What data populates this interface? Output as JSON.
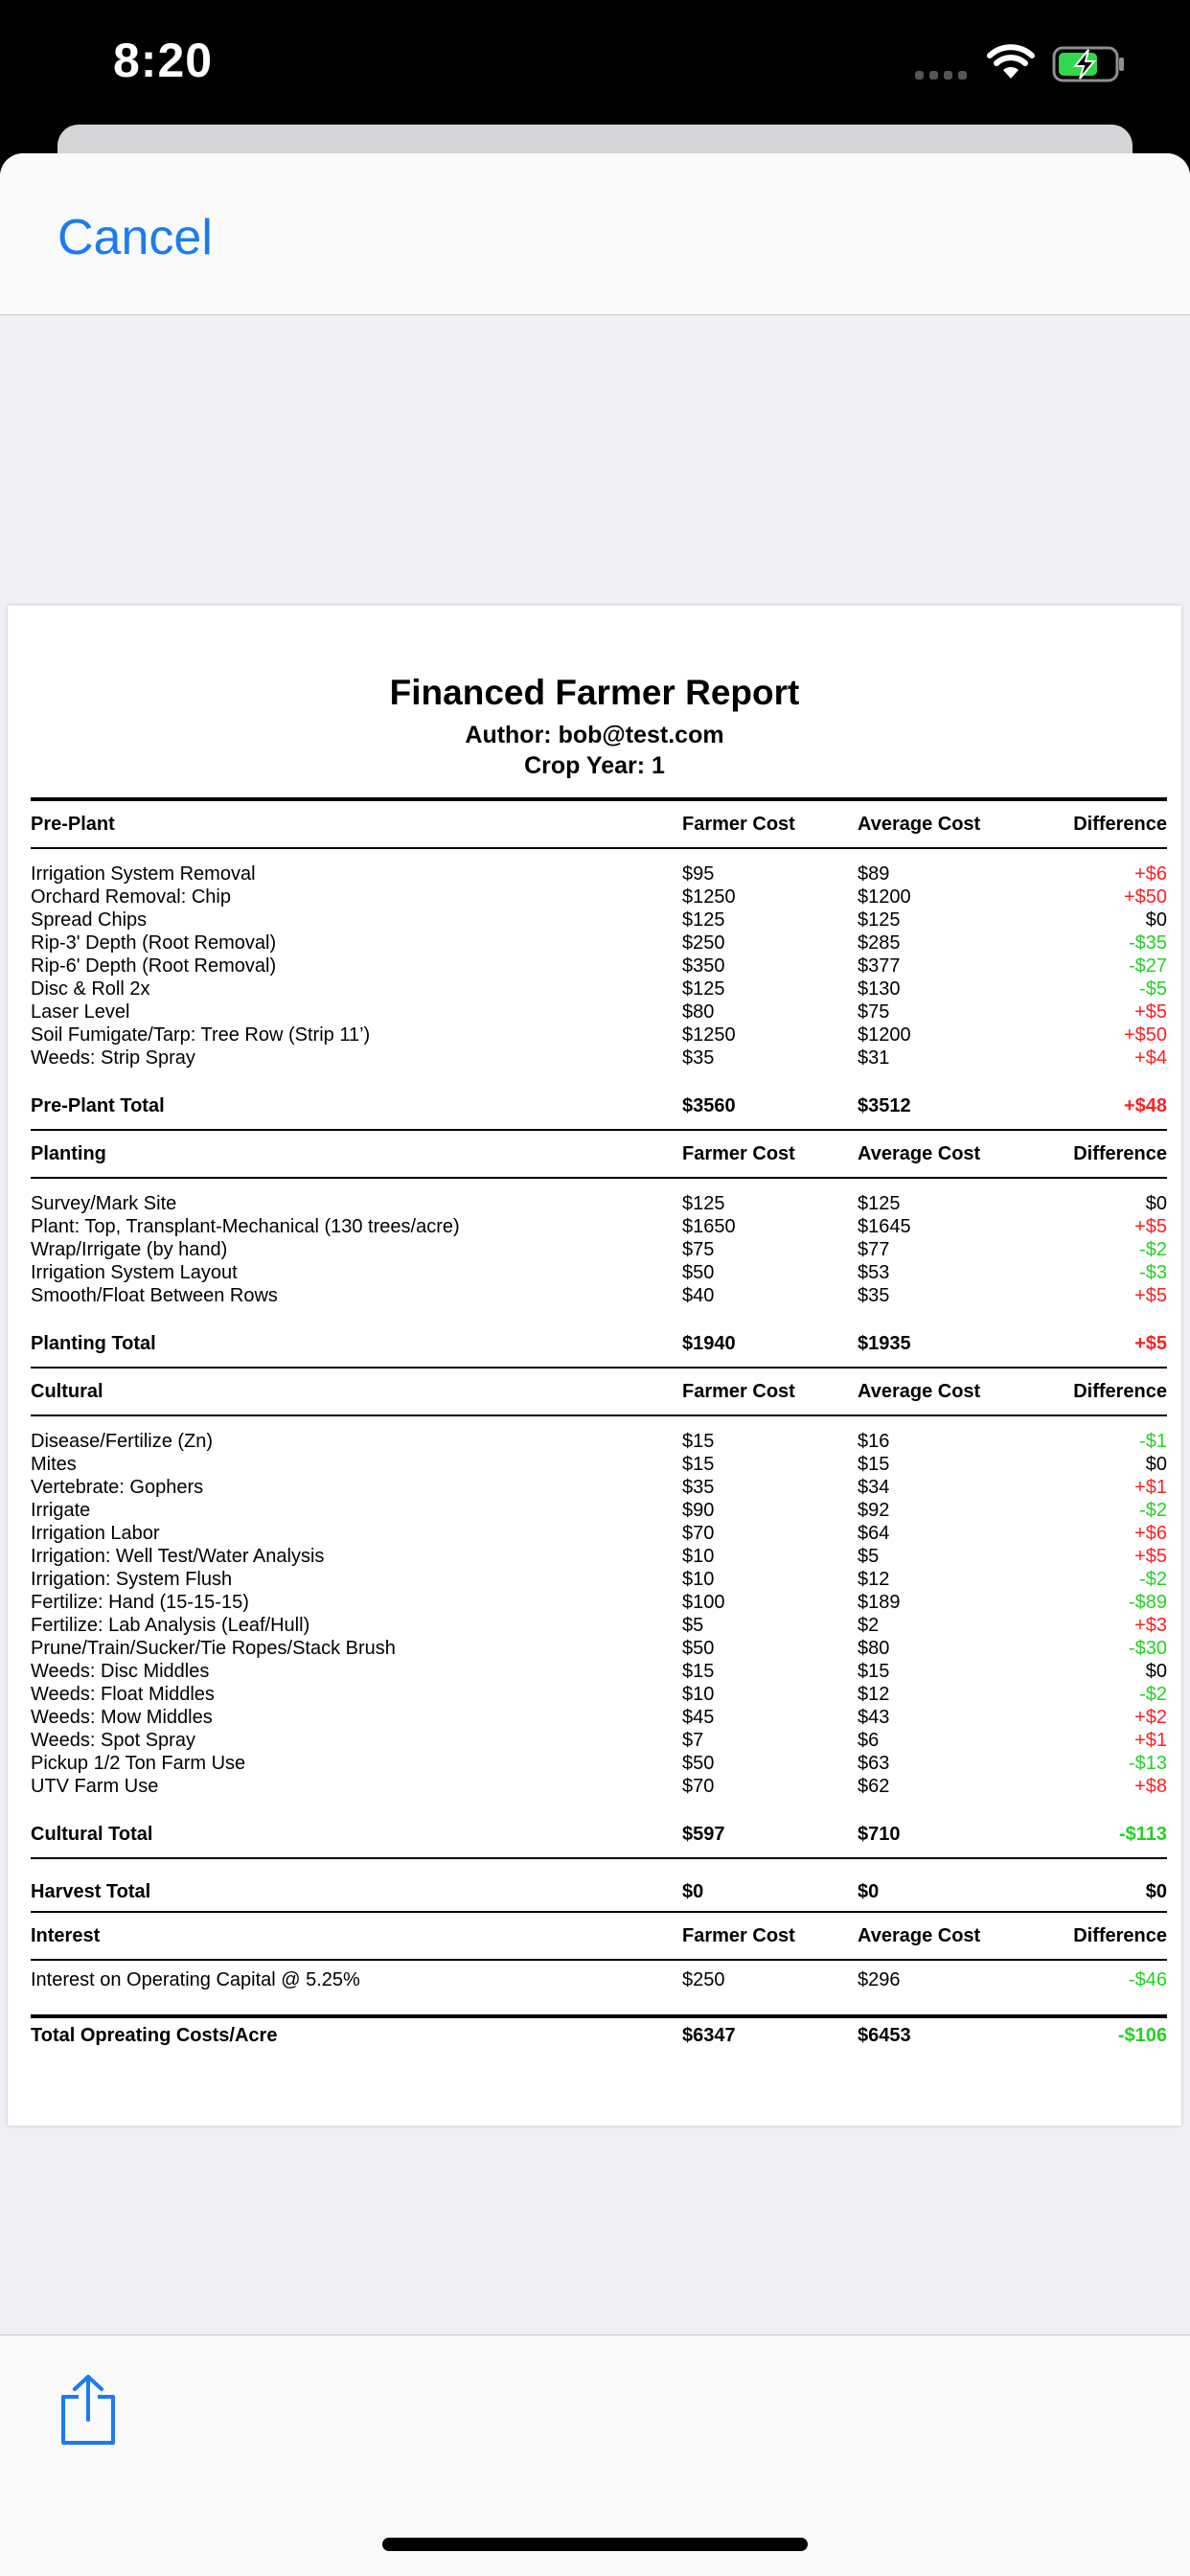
{
  "status_bar": {
    "time": "8:20"
  },
  "nav": {
    "cancel_label": "Cancel"
  },
  "report": {
    "title": "Financed Farmer Report",
    "author": "Author: bob@test.com",
    "crop_year": "Crop Year: 1",
    "sections": [
      {
        "name": "Pre-Plant",
        "headers": [
          "Farmer Cost",
          "Average Cost",
          "Difference"
        ],
        "items": [
          {
            "name": "Irrigation System Removal",
            "farmer": "$95",
            "avg": "$89",
            "diff": "+$6"
          },
          {
            "name": "Orchard Removal: Chip",
            "farmer": "$1250",
            "avg": "$1200",
            "diff": "+$50"
          },
          {
            "name": "Spread Chips",
            "farmer": "$125",
            "avg": "$125",
            "diff": "$0"
          },
          {
            "name": "Rip-3' Depth (Root Removal)",
            "farmer": "$250",
            "avg": "$285",
            "diff": "-$35"
          },
          {
            "name": "Rip-6' Depth (Root Removal)",
            "farmer": "$350",
            "avg": "$377",
            "diff": "-$27"
          },
          {
            "name": "Disc & Roll 2x",
            "farmer": "$125",
            "avg": "$130",
            "diff": "-$5"
          },
          {
            "name": "Laser Level",
            "farmer": "$80",
            "avg": "$75",
            "diff": "+$5"
          },
          {
            "name": "Soil Fumigate/Tarp: Tree Row (Strip 11’)",
            "farmer": "$1250",
            "avg": "$1200",
            "diff": "+$50"
          },
          {
            "name": "Weeds: Strip Spray",
            "farmer": "$35",
            "avg": "$31",
            "diff": "+$4"
          }
        ],
        "total": {
          "name": "Pre-Plant Total",
          "farmer": "$3560",
          "avg": "$3512",
          "diff": "+$48"
        }
      },
      {
        "name": "Planting",
        "headers": [
          "Farmer Cost",
          "Average Cost",
          "Difference"
        ],
        "items": [
          {
            "name": "Survey/Mark Site",
            "farmer": "$125",
            "avg": "$125",
            "diff": "$0"
          },
          {
            "name": "Plant: Top, Transplant-Mechanical (130 trees/acre)",
            "farmer": "$1650",
            "avg": "$1645",
            "diff": "+$5"
          },
          {
            "name": "Wrap/Irrigate (by hand)",
            "farmer": "$75",
            "avg": "$77",
            "diff": "-$2"
          },
          {
            "name": "Irrigation System Layout",
            "farmer": "$50",
            "avg": "$53",
            "diff": "-$3"
          },
          {
            "name": "Smooth/Float Between Rows",
            "farmer": "$40",
            "avg": "$35",
            "diff": "+$5"
          }
        ],
        "total": {
          "name": "Planting Total",
          "farmer": "$1940",
          "avg": "$1935",
          "diff": "+$5"
        }
      },
      {
        "name": "Cultural",
        "headers": [
          "Farmer Cost",
          "Average Cost",
          "Difference"
        ],
        "items": [
          {
            "name": "Disease/Fertilize (Zn)",
            "farmer": "$15",
            "avg": "$16",
            "diff": "-$1"
          },
          {
            "name": "Mites",
            "farmer": "$15",
            "avg": "$15",
            "diff": "$0"
          },
          {
            "name": "Vertebrate: Gophers",
            "farmer": "$35",
            "avg": "$34",
            "diff": "+$1"
          },
          {
            "name": "Irrigate",
            "farmer": "$90",
            "avg": "$92",
            "diff": "-$2"
          },
          {
            "name": "Irrigation Labor",
            "farmer": "$70",
            "avg": "$64",
            "diff": "+$6"
          },
          {
            "name": "Irrigation: Well Test/Water Analysis",
            "farmer": "$10",
            "avg": "$5",
            "diff": "+$5"
          },
          {
            "name": "Irrigation: System Flush",
            "farmer": "$10",
            "avg": "$12",
            "diff": "-$2"
          },
          {
            "name": "Fertilize: Hand (15-15-15)",
            "farmer": "$100",
            "avg": "$189",
            "diff": "-$89"
          },
          {
            "name": "Fertilize: Lab Analysis (Leaf/Hull)",
            "farmer": "$5",
            "avg": "$2",
            "diff": "+$3"
          },
          {
            "name": "Prune/Train/Sucker/Tie Ropes/Stack Brush",
            "farmer": "$50",
            "avg": "$80",
            "diff": "-$30"
          },
          {
            "name": "Weeds: Disc Middles",
            "farmer": "$15",
            "avg": "$15",
            "diff": "$0"
          },
          {
            "name": "Weeds: Float Middles",
            "farmer": "$10",
            "avg": "$12",
            "diff": "-$2"
          },
          {
            "name": "Weeds: Mow Middles",
            "farmer": "$45",
            "avg": "$43",
            "diff": "+$2"
          },
          {
            "name": "Weeds: Spot Spray",
            "farmer": "$7",
            "avg": "$6",
            "diff": "+$1"
          },
          {
            "name": "Pickup 1/2 Ton Farm Use",
            "farmer": "$50",
            "avg": "$63",
            "diff": "-$13"
          },
          {
            "name": "UTV Farm Use",
            "farmer": "$70",
            "avg": "$62",
            "diff": "+$8"
          }
        ],
        "total": {
          "name": "Cultural Total",
          "farmer": "$597",
          "avg": "$710",
          "diff": "-$113"
        }
      }
    ],
    "harvest_total": {
      "name": "Harvest Total",
      "farmer": "$0",
      "avg": "$0",
      "diff": "$0"
    },
    "interest": {
      "name": "Interest",
      "headers": [
        "Farmer Cost",
        "Average Cost",
        "Difference"
      ],
      "items": [
        {
          "name": "Interest on Operating Capital @ 5.25%",
          "farmer": "$250",
          "avg": "$296",
          "diff": "-$46"
        }
      ]
    },
    "grand_total": {
      "name": "Total Opreating Costs/Acre",
      "farmer": "$6347",
      "avg": "$6453",
      "diff": "-$106"
    }
  },
  "colors": {
    "positive": "#ff1f1f",
    "negative": "#24d124",
    "accent": "#1a7cf0"
  },
  "toolbar": {
    "share_icon": "share-icon"
  }
}
